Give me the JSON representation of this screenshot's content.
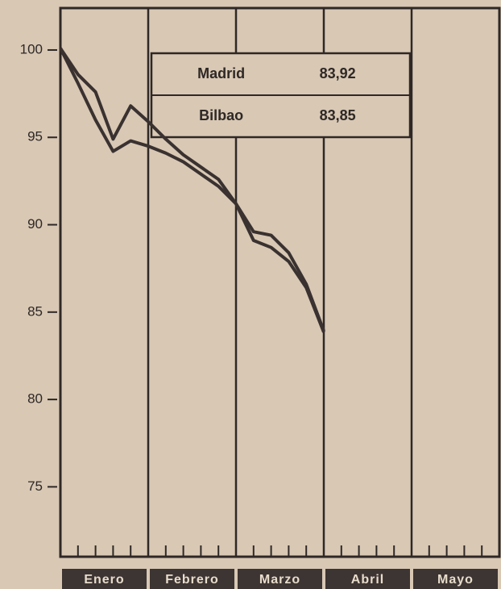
{
  "chart_data": {
    "type": "line",
    "categories": [
      "Enero",
      "Febrero",
      "Marzo",
      "Abril",
      "Mayo"
    ],
    "x": [
      0,
      1,
      2,
      3,
      4,
      5,
      6,
      7,
      8,
      9,
      10,
      11,
      12,
      13,
      14,
      15
    ],
    "xlim": [
      0,
      25
    ],
    "xticks": [
      1,
      2,
      3,
      4,
      6,
      7,
      8,
      9,
      11,
      12,
      13,
      14,
      16,
      17,
      18,
      19,
      21,
      22,
      23,
      24
    ],
    "ylim": [
      71,
      102.4
    ],
    "yticks": [
      75,
      80,
      85,
      90,
      95,
      100
    ],
    "legend": "top-center",
    "series": [
      {
        "name": "Madrid",
        "annotation": "83,92",
        "color": "#3a3230",
        "values": [
          100.1,
          98.6,
          97.6,
          94.9,
          96.8,
          95.9,
          94.9,
          94.0,
          93.3,
          92.6,
          91.2,
          89.6,
          89.4,
          88.4,
          86.6,
          83.92
        ]
      },
      {
        "name": "Bilbao",
        "annotation": "83,85",
        "color": "#3a3230",
        "values": [
          100.1,
          98.1,
          96.0,
          94.2,
          94.8,
          94.5,
          94.1,
          93.6,
          92.9,
          92.2,
          91.2,
          89.1,
          88.7,
          87.9,
          86.4,
          83.85
        ]
      }
    ]
  }
}
